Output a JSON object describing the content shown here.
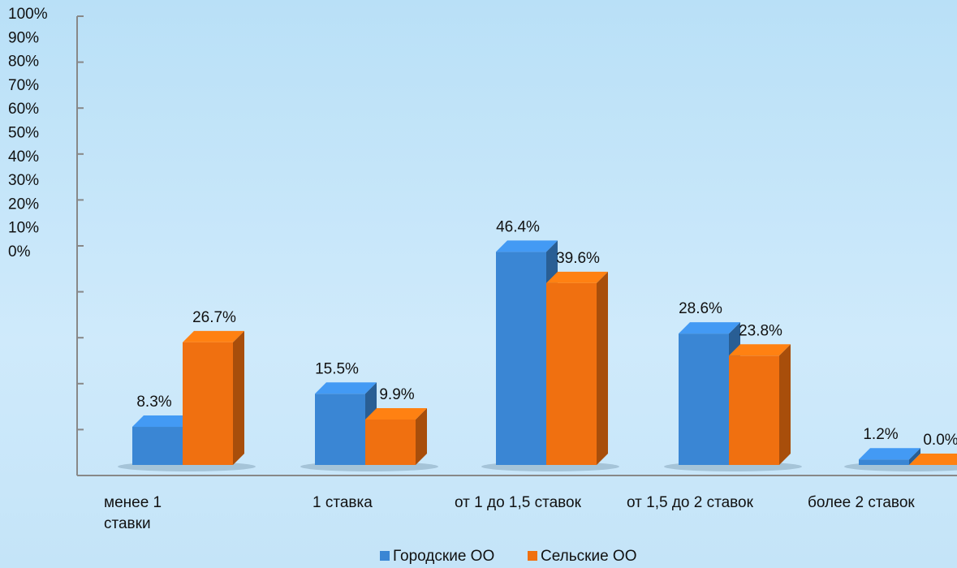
{
  "chart_data": {
    "type": "bar3d",
    "categories": [
      "менее 1 ставки",
      "1 ставка",
      "от 1 до 1,5 ставок",
      "от 1,5 до 2 ставок",
      "более 2 ставок"
    ],
    "series": [
      {
        "name": "Городские ОО",
        "color": "#3a86d4",
        "values": [
          8.3,
          15.5,
          46.4,
          28.6,
          1.2
        ],
        "value_labels": [
          "8.3%",
          "15.5%",
          "46.4%",
          "28.6%",
          "1.2%"
        ]
      },
      {
        "name": "Сельские ОО",
        "color": "#f07010",
        "values": [
          26.7,
          9.9,
          39.6,
          23.8,
          0.0
        ],
        "value_labels": [
          "26.7%",
          "9.9%",
          "39.6%",
          "23.8%",
          "0.0%"
        ]
      }
    ],
    "ylim": [
      0,
      100
    ],
    "yticks": [
      {
        "value": 0,
        "label": "0%"
      },
      {
        "value": 10,
        "label": "10%"
      },
      {
        "value": 20,
        "label": "20%"
      },
      {
        "value": 30,
        "label": "30%"
      },
      {
        "value": 40,
        "label": "40%"
      },
      {
        "value": 50,
        "label": "50%"
      },
      {
        "value": 60,
        "label": "60%"
      },
      {
        "value": 70,
        "label": "70%"
      },
      {
        "value": 80,
        "label": "80%"
      },
      {
        "value": 90,
        "label": "90%"
      },
      {
        "value": 100,
        "label": "100%"
      }
    ],
    "legend": "bottom"
  }
}
